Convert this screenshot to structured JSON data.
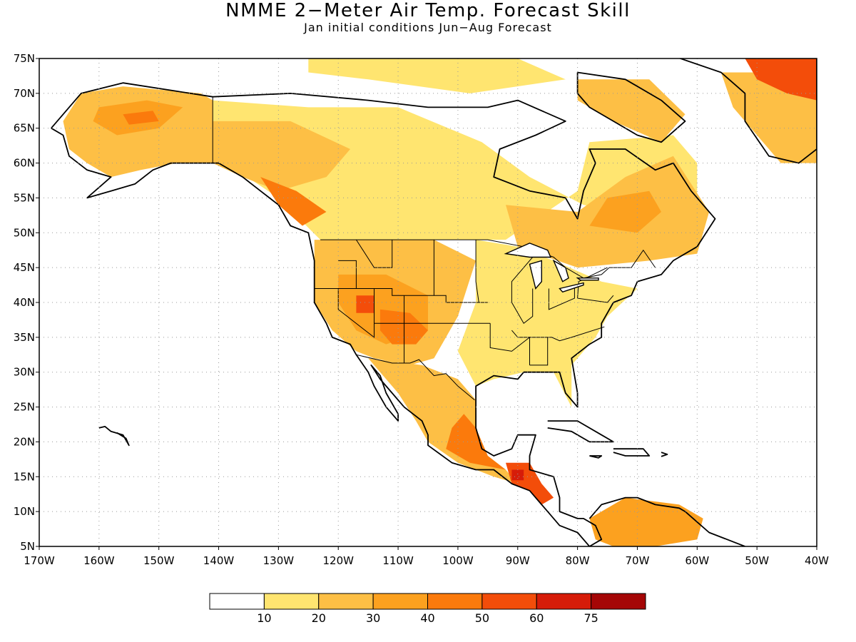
{
  "title": "NMME 2−Meter Air Temp. Forecast Skill",
  "subtitle": "Jan initial conditions  Jun−Aug Forecast",
  "map": {
    "lon_range": [
      -170,
      -40
    ],
    "lat_range": [
      5,
      75
    ],
    "lat_ticks": [
      {
        "value": 75,
        "label": "75N"
      },
      {
        "value": 70,
        "label": "70N"
      },
      {
        "value": 65,
        "label": "65N"
      },
      {
        "value": 60,
        "label": "60N"
      },
      {
        "value": 55,
        "label": "55N"
      },
      {
        "value": 50,
        "label": "50N"
      },
      {
        "value": 45,
        "label": "45N"
      },
      {
        "value": 40,
        "label": "40N"
      },
      {
        "value": 35,
        "label": "35N"
      },
      {
        "value": 30,
        "label": "30N"
      },
      {
        "value": 25,
        "label": "25N"
      },
      {
        "value": 20,
        "label": "20N"
      },
      {
        "value": 15,
        "label": "15N"
      },
      {
        "value": 10,
        "label": "10N"
      },
      {
        "value": 5,
        "label": "5N"
      }
    ],
    "lon_ticks": [
      {
        "value": -170,
        "label": "170W"
      },
      {
        "value": -160,
        "label": "160W"
      },
      {
        "value": -150,
        "label": "150W"
      },
      {
        "value": -140,
        "label": "140W"
      },
      {
        "value": -130,
        "label": "130W"
      },
      {
        "value": -120,
        "label": "120W"
      },
      {
        "value": -110,
        "label": "110W"
      },
      {
        "value": -100,
        "label": "100W"
      },
      {
        "value": -90,
        "label": "90W"
      },
      {
        "value": -80,
        "label": "80W"
      },
      {
        "value": -70,
        "label": "70W"
      },
      {
        "value": -60,
        "label": "60W"
      },
      {
        "value": -50,
        "label": "50W"
      },
      {
        "value": -40,
        "label": "40W"
      }
    ],
    "grid_lines": "dotted",
    "colors": {
      "white": "#ffffff",
      "c10": "#ffe570",
      "c20": "#fdbf45",
      "c30": "#fca11f",
      "c40": "#fb7a0c",
      "c50": "#f34d0a",
      "c60": "#d61c09",
      "c75": "#a50606",
      "coast": "#000000"
    },
    "skill_regions": [
      {
        "name": "alaska-interior",
        "level": "c20",
        "poly": [
          [
            -163,
            70
          ],
          [
            -156,
            71
          ],
          [
            -143,
            70
          ],
          [
            -141,
            69
          ],
          [
            -141,
            60
          ],
          [
            -147,
            60
          ],
          [
            -153,
            59
          ],
          [
            -158,
            58
          ],
          [
            -162,
            60
          ],
          [
            -165,
            62
          ],
          [
            -166,
            66
          ]
        ]
      },
      {
        "name": "alaska-high",
        "level": "c30",
        "poly": [
          [
            -160,
            68
          ],
          [
            -152,
            69
          ],
          [
            -146,
            68
          ],
          [
            -150,
            65
          ],
          [
            -157,
            64
          ],
          [
            -161,
            66
          ]
        ]
      },
      {
        "name": "alaska-core",
        "level": "c40",
        "poly": [
          [
            -156,
            67
          ],
          [
            -151,
            67.5
          ],
          [
            -150,
            66
          ],
          [
            -155,
            65.5
          ]
        ]
      },
      {
        "name": "canada-broad",
        "level": "c10",
        "poly": [
          [
            -141,
            69
          ],
          [
            -125,
            68
          ],
          [
            -110,
            68
          ],
          [
            -96,
            63
          ],
          [
            -88,
            58
          ],
          [
            -79,
            54
          ],
          [
            -68,
            52
          ],
          [
            -60,
            52
          ],
          [
            -60,
            60
          ],
          [
            -64,
            64
          ],
          [
            -78,
            63
          ],
          [
            -80,
            56
          ],
          [
            -92,
            49
          ],
          [
            -110,
            49
          ],
          [
            -123,
            49
          ],
          [
            -130,
            55
          ],
          [
            -137,
            59
          ],
          [
            -141,
            60
          ]
        ]
      },
      {
        "name": "canada-nw",
        "level": "c20",
        "poly": [
          [
            -141,
            66
          ],
          [
            -128,
            66
          ],
          [
            -118,
            62
          ],
          [
            -122,
            58
          ],
          [
            -130,
            56
          ],
          [
            -136,
            58
          ],
          [
            -141,
            60
          ]
        ]
      },
      {
        "name": "quebec-ont",
        "level": "c20",
        "poly": [
          [
            -92,
            54
          ],
          [
            -80,
            53
          ],
          [
            -72,
            58
          ],
          [
            -64,
            61
          ],
          [
            -58,
            53
          ],
          [
            -60,
            47
          ],
          [
            -68,
            46
          ],
          [
            -80,
            45
          ],
          [
            -90,
            48
          ]
        ]
      },
      {
        "name": "quebec-core",
        "level": "c30",
        "poly": [
          [
            -78,
            51
          ],
          [
            -70,
            50
          ],
          [
            -66,
            53
          ],
          [
            -68,
            56
          ],
          [
            -75,
            55
          ]
        ]
      },
      {
        "name": "bc-coast",
        "level": "c40",
        "poly": [
          [
            -133,
            58
          ],
          [
            -127,
            56
          ],
          [
            -122,
            53
          ],
          [
            -126,
            51
          ],
          [
            -130,
            54
          ]
        ]
      },
      {
        "name": "us-west",
        "level": "c20",
        "poly": [
          [
            -124,
            49
          ],
          [
            -104,
            49
          ],
          [
            -97,
            46
          ],
          [
            -100,
            38
          ],
          [
            -104,
            32
          ],
          [
            -108,
            31
          ],
          [
            -114,
            32
          ],
          [
            -117,
            33
          ],
          [
            -121,
            36
          ],
          [
            -124,
            40
          ]
        ]
      },
      {
        "name": "us-east",
        "level": "c10",
        "poly": [
          [
            -97,
            49
          ],
          [
            -90,
            48
          ],
          [
            -84,
            46
          ],
          [
            -76,
            43
          ],
          [
            -70,
            42
          ],
          [
            -75,
            38
          ],
          [
            -77,
            35
          ],
          [
            -81,
            31
          ],
          [
            -81,
            25
          ],
          [
            -84,
            30
          ],
          [
            -89,
            30
          ],
          [
            -94,
            29
          ],
          [
            -97,
            28
          ],
          [
            -100,
            33
          ],
          [
            -97,
            40
          ]
        ]
      },
      {
        "name": "us-great-basin",
        "level": "c30",
        "poly": [
          [
            -120,
            44
          ],
          [
            -112,
            44
          ],
          [
            -105,
            41
          ],
          [
            -105,
            36
          ],
          [
            -112,
            34
          ],
          [
            -117,
            36
          ],
          [
            -120,
            40
          ]
        ]
      },
      {
        "name": "us-4corners",
        "level": "c40",
        "poly": [
          [
            -113,
            39
          ],
          [
            -108,
            38.5
          ],
          [
            -105,
            36
          ],
          [
            -107,
            34
          ],
          [
            -111,
            34
          ],
          [
            -113,
            36
          ]
        ]
      },
      {
        "name": "nevada-hot",
        "level": "c50",
        "poly": [
          [
            -117,
            41
          ],
          [
            -114,
            41
          ],
          [
            -114,
            38.5
          ],
          [
            -117,
            38.5
          ]
        ]
      },
      {
        "name": "mexico",
        "level": "c20",
        "poly": [
          [
            -115,
            32
          ],
          [
            -106,
            31
          ],
          [
            -100,
            29
          ],
          [
            -97,
            26
          ],
          [
            -97,
            22
          ],
          [
            -95,
            18
          ],
          [
            -92,
            16
          ],
          [
            -90,
            14
          ],
          [
            -94,
            15
          ],
          [
            -100,
            17
          ],
          [
            -105,
            20
          ],
          [
            -107,
            23
          ],
          [
            -110,
            27
          ],
          [
            -113,
            30
          ]
        ]
      },
      {
        "name": "mexico-high",
        "level": "c40",
        "poly": [
          [
            -99,
            24
          ],
          [
            -97,
            22
          ],
          [
            -95,
            18
          ],
          [
            -92,
            16
          ],
          [
            -98,
            17
          ],
          [
            -102,
            19
          ],
          [
            -101,
            22
          ]
        ]
      },
      {
        "name": "central-am",
        "level": "c50",
        "poly": [
          [
            -92,
            17
          ],
          [
            -88,
            17
          ],
          [
            -86,
            14
          ],
          [
            -84,
            12
          ],
          [
            -86,
            11
          ],
          [
            -88,
            13
          ],
          [
            -91,
            14
          ]
        ]
      },
      {
        "name": "guatemala-core",
        "level": "c60",
        "poly": [
          [
            -91,
            16
          ],
          [
            -89,
            16
          ],
          [
            -89,
            14.5
          ],
          [
            -91,
            14.5
          ]
        ]
      },
      {
        "name": "south-am-north",
        "level": "c30",
        "poly": [
          [
            -78,
            9
          ],
          [
            -72,
            12
          ],
          [
            -63,
            11
          ],
          [
            -59,
            9
          ],
          [
            -60,
            6
          ],
          [
            -67,
            5
          ],
          [
            -74,
            5
          ],
          [
            -77,
            6
          ]
        ]
      },
      {
        "name": "greenland-south",
        "level": "c20",
        "poly": [
          [
            -56,
            73
          ],
          [
            -40,
            73
          ],
          [
            -40,
            60
          ],
          [
            -46,
            60
          ],
          [
            -50,
            64
          ],
          [
            -54,
            68
          ]
        ]
      },
      {
        "name": "greenland-red",
        "level": "c50",
        "poly": [
          [
            -52,
            75
          ],
          [
            -40,
            75
          ],
          [
            -40,
            69
          ],
          [
            -45,
            70
          ],
          [
            -50,
            72
          ]
        ]
      },
      {
        "name": "baffin",
        "level": "c20",
        "poly": [
          [
            -80,
            72
          ],
          [
            -68,
            72
          ],
          [
            -62,
            67
          ],
          [
            -66,
            63
          ],
          [
            -74,
            66
          ],
          [
            -80,
            69
          ]
        ]
      },
      {
        "name": "arctic-islands",
        "level": "c10",
        "poly": [
          [
            -125,
            75
          ],
          [
            -90,
            75
          ],
          [
            -82,
            72
          ],
          [
            -98,
            70
          ],
          [
            -115,
            72
          ],
          [
            -125,
            73
          ]
        ]
      }
    ]
  },
  "colorbar": {
    "labels": [
      "10",
      "20",
      "30",
      "40",
      "50",
      "60",
      "75"
    ],
    "colors": [
      "#ffffff",
      "#ffe570",
      "#fdbf45",
      "#fca11f",
      "#fb7a0c",
      "#f34d0a",
      "#d61c09",
      "#a50606"
    ]
  }
}
